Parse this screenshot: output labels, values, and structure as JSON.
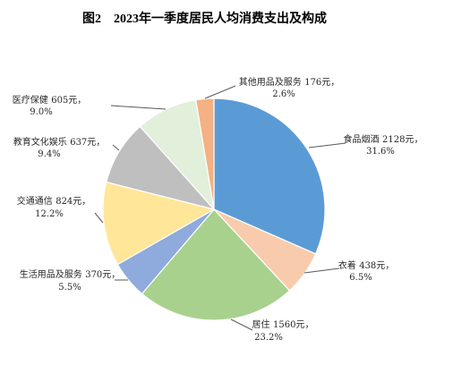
{
  "chart_data": {
    "type": "pie",
    "title": "图2　2023年一季度居民人均消费支出及构成",
    "categories": [
      "食品烟酒",
      "衣着",
      "居住",
      "生活用品及服务",
      "交通通信",
      "教育文化娱乐",
      "医疗保健",
      "其他用品及服务"
    ],
    "values": [
      2128,
      438,
      1560,
      370,
      824,
      637,
      605,
      176
    ],
    "unit": "元",
    "label_separator": "，",
    "percent_labels": [
      "31.6%",
      "6.5%",
      "23.2%",
      "5.5%",
      "12.2%",
      "9.4%",
      "9.0%",
      "2.6%"
    ],
    "colors": [
      "#5b9bd5",
      "#f8cbad",
      "#a9d18e",
      "#8faadc",
      "#ffe699",
      "#bfbfbf",
      "#e2efda",
      "#f4b183"
    ],
    "legend": "none"
  }
}
